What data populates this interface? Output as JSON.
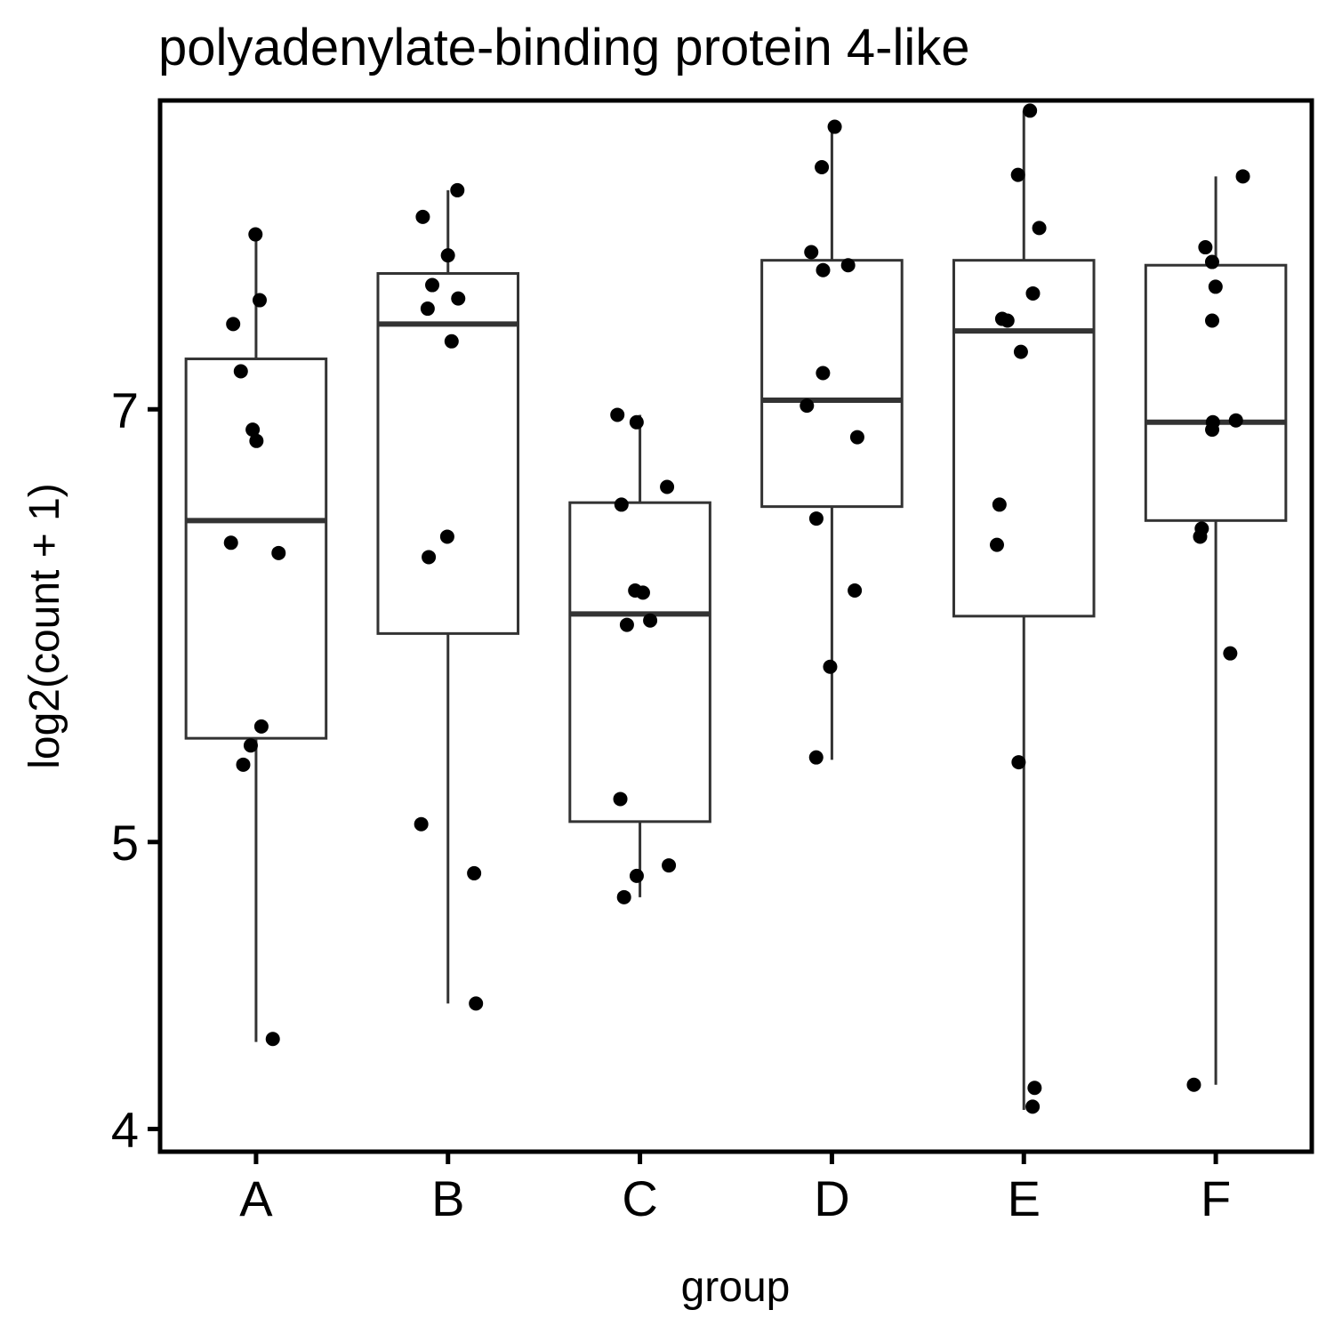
{
  "chart_data": {
    "type": "box",
    "title": "polyadenylate-binding protein 4-like",
    "xlabel": "group",
    "ylabel": "log2(count + 1)",
    "y_scale": "log",
    "ylim": [
      3.93,
      8.9
    ],
    "yticks": [
      {
        "value": 4,
        "label": "4"
      },
      {
        "value": 5,
        "label": "5"
      },
      {
        "value": 7,
        "label": "7"
      }
    ],
    "grid": false,
    "categories": [
      "A",
      "B",
      "C",
      "D",
      "E",
      "F"
    ],
    "boxes": [
      {
        "name": "A",
        "min": 4.28,
        "q1": 5.42,
        "median": 6.42,
        "q3": 7.28,
        "max": 8.02
      },
      {
        "name": "B",
        "min": 4.41,
        "q1": 5.88,
        "median": 7.48,
        "q3": 7.78,
        "max": 8.3
      },
      {
        "name": "C",
        "min": 4.79,
        "q1": 5.08,
        "median": 5.97,
        "q3": 6.51,
        "max": 6.97
      },
      {
        "name": "D",
        "min": 5.33,
        "q1": 6.49,
        "median": 7.05,
        "q3": 7.86,
        "max": 8.72
      },
      {
        "name": "E",
        "min": 4.06,
        "q1": 5.96,
        "median": 7.44,
        "q3": 7.86,
        "max": 8.83
      },
      {
        "name": "F",
        "min": 4.14,
        "q1": 6.42,
        "median": 6.93,
        "q3": 7.83,
        "max": 8.39
      }
    ],
    "points": [
      {
        "group": "A",
        "values": [
          8.02,
          7.62,
          7.48,
          7.21,
          6.89,
          6.83,
          6.31,
          6.26,
          5.47,
          5.39,
          5.31,
          4.29
        ]
      },
      {
        "group": "B",
        "values": [
          8.3,
          8.13,
          7.89,
          7.71,
          7.63,
          7.57,
          7.38,
          6.34,
          6.24,
          5.07,
          4.88,
          4.41
        ]
      },
      {
        "group": "C",
        "values": [
          6.97,
          6.93,
          6.59,
          6.5,
          6.08,
          6.07,
          5.94,
          5.92,
          5.17,
          4.91,
          4.87,
          4.79
        ]
      },
      {
        "group": "D",
        "values": [
          8.72,
          8.45,
          7.91,
          7.83,
          7.8,
          7.2,
          7.02,
          6.85,
          6.43,
          6.08,
          5.73,
          5.34
        ]
      },
      {
        "group": "E",
        "values": [
          8.83,
          8.4,
          8.06,
          7.66,
          7.51,
          7.5,
          7.32,
          6.5,
          6.3,
          5.32,
          4.13,
          4.07
        ]
      },
      {
        "group": "F",
        "values": [
          8.39,
          7.94,
          7.85,
          7.7,
          7.5,
          6.94,
          6.93,
          6.89,
          6.38,
          6.34,
          5.79,
          4.14
        ]
      }
    ]
  }
}
